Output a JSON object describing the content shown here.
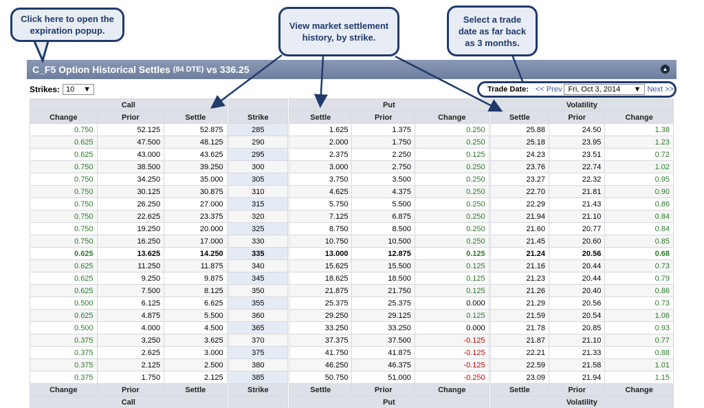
{
  "callouts": {
    "expiration": "Click here to open the expiration popup.",
    "settlement": "View market settlement history, by strike.",
    "trade_date": "Select a trade date as far back as 3 months."
  },
  "header": {
    "title_main": "C_F5 Option Historical Settles",
    "title_dte": "(84 DTE)",
    "title_vs": "vs 336.25",
    "collapse_icon": "chevron-up-icon"
  },
  "strikes": {
    "label": "Strikes:",
    "value": "10"
  },
  "trade_date": {
    "label": "Trade Date:",
    "prev": "<< Prev",
    "value": "Fri, Oct 3, 2014",
    "next": "Next >>"
  },
  "groups": {
    "call": "Call",
    "put": "Put",
    "volatility": "Volatility"
  },
  "columns": {
    "change": "Change",
    "prior": "Prior",
    "settle": "Settle",
    "strike": "Strike"
  },
  "rows": [
    {
      "cc": "0.750",
      "cp": "52.125",
      "cs": "52.875",
      "k": "285",
      "ps": "1.625",
      "pp": "1.375",
      "pc": "0.250",
      "vs": "25.88",
      "vp": "24.50",
      "vc": "1.38"
    },
    {
      "cc": "0.625",
      "cp": "47.500",
      "cs": "48.125",
      "k": "290",
      "ps": "2.000",
      "pp": "1.750",
      "pc": "0.250",
      "vs": "25.18",
      "vp": "23.95",
      "vc": "1.23"
    },
    {
      "cc": "0.625",
      "cp": "43.000",
      "cs": "43.625",
      "k": "295",
      "ps": "2.375",
      "pp": "2.250",
      "pc": "0.125",
      "vs": "24.23",
      "vp": "23.51",
      "vc": "0.72"
    },
    {
      "cc": "0.750",
      "cp": "38.500",
      "cs": "39.250",
      "k": "300",
      "ps": "3.000",
      "pp": "2.750",
      "pc": "0.250",
      "vs": "23.76",
      "vp": "22.74",
      "vc": "1.02"
    },
    {
      "cc": "0.750",
      "cp": "34.250",
      "cs": "35.000",
      "k": "305",
      "ps": "3.750",
      "pp": "3.500",
      "pc": "0.250",
      "vs": "23.27",
      "vp": "22.32",
      "vc": "0.95"
    },
    {
      "cc": "0.750",
      "cp": "30.125",
      "cs": "30.875",
      "k": "310",
      "ps": "4.625",
      "pp": "4.375",
      "pc": "0.250",
      "vs": "22.70",
      "vp": "21.81",
      "vc": "0.90"
    },
    {
      "cc": "0.750",
      "cp": "26.250",
      "cs": "27.000",
      "k": "315",
      "ps": "5.750",
      "pp": "5.500",
      "pc": "0.250",
      "vs": "22.29",
      "vp": "21.43",
      "vc": "0.86"
    },
    {
      "cc": "0.750",
      "cp": "22.625",
      "cs": "23.375",
      "k": "320",
      "ps": "7.125",
      "pp": "6.875",
      "pc": "0.250",
      "vs": "21.94",
      "vp": "21.10",
      "vc": "0.84"
    },
    {
      "cc": "0.750",
      "cp": "19.250",
      "cs": "20.000",
      "k": "325",
      "ps": "8.750",
      "pp": "8.500",
      "pc": "0.250",
      "vs": "21.60",
      "vp": "20.77",
      "vc": "0.84"
    },
    {
      "cc": "0.750",
      "cp": "16.250",
      "cs": "17.000",
      "k": "330",
      "ps": "10.750",
      "pp": "10.500",
      "pc": "0.250",
      "vs": "21.45",
      "vp": "20.60",
      "vc": "0.85"
    },
    {
      "cc": "0.625",
      "cp": "13.625",
      "cs": "14.250",
      "k": "335",
      "ps": "13.000",
      "pp": "12.875",
      "pc": "0.125",
      "vs": "21.24",
      "vp": "20.56",
      "vc": "0.68",
      "atm": true
    },
    {
      "cc": "0.625",
      "cp": "11.250",
      "cs": "11.875",
      "k": "340",
      "ps": "15.625",
      "pp": "15.500",
      "pc": "0.125",
      "vs": "21.16",
      "vp": "20.44",
      "vc": "0.73"
    },
    {
      "cc": "0.625",
      "cp": "9.250",
      "cs": "9.875",
      "k": "345",
      "ps": "18.625",
      "pp": "18.500",
      "pc": "0.125",
      "vs": "21.23",
      "vp": "20.44",
      "vc": "0.79"
    },
    {
      "cc": "0.625",
      "cp": "7.500",
      "cs": "8.125",
      "k": "350",
      "ps": "21.875",
      "pp": "21.750",
      "pc": "0.125",
      "vs": "21.26",
      "vp": "20.40",
      "vc": "0.86"
    },
    {
      "cc": "0.500",
      "cp": "6.125",
      "cs": "6.625",
      "k": "355",
      "ps": "25.375",
      "pp": "25.375",
      "pc": "0.000",
      "vs": "21.29",
      "vp": "20.56",
      "vc": "0.73"
    },
    {
      "cc": "0.625",
      "cp": "4.875",
      "cs": "5.500",
      "k": "360",
      "ps": "29.250",
      "pp": "29.125",
      "pc": "0.125",
      "vs": "21.59",
      "vp": "20.54",
      "vc": "1.06"
    },
    {
      "cc": "0.500",
      "cp": "4.000",
      "cs": "4.500",
      "k": "365",
      "ps": "33.250",
      "pp": "33.250",
      "pc": "0.000",
      "vs": "21.78",
      "vp": "20.85",
      "vc": "0.93"
    },
    {
      "cc": "0.375",
      "cp": "3.250",
      "cs": "3.625",
      "k": "370",
      "ps": "37.375",
      "pp": "37.500",
      "pc": "-0.125",
      "vs": "21.87",
      "vp": "21.10",
      "vc": "0.77"
    },
    {
      "cc": "0.375",
      "cp": "2.625",
      "cs": "3.000",
      "k": "375",
      "ps": "41.750",
      "pp": "41.875",
      "pc": "-0.125",
      "vs": "22.21",
      "vp": "21.33",
      "vc": "0.88"
    },
    {
      "cc": "0.375",
      "cp": "2.125",
      "cs": "2.500",
      "k": "380",
      "ps": "46.250",
      "pp": "46.375",
      "pc": "-0.125",
      "vs": "22.59",
      "vp": "21.58",
      "vc": "1.01"
    },
    {
      "cc": "0.375",
      "cp": "1.750",
      "cs": "2.125",
      "k": "385",
      "ps": "50.750",
      "pp": "51.000",
      "pc": "-0.250",
      "vs": "23.09",
      "vp": "21.94",
      "vc": "1.15"
    }
  ],
  "colors": {
    "positive": "#2a7a2a",
    "negative": "#cc0000",
    "callout_border": "#1f3a6b"
  }
}
